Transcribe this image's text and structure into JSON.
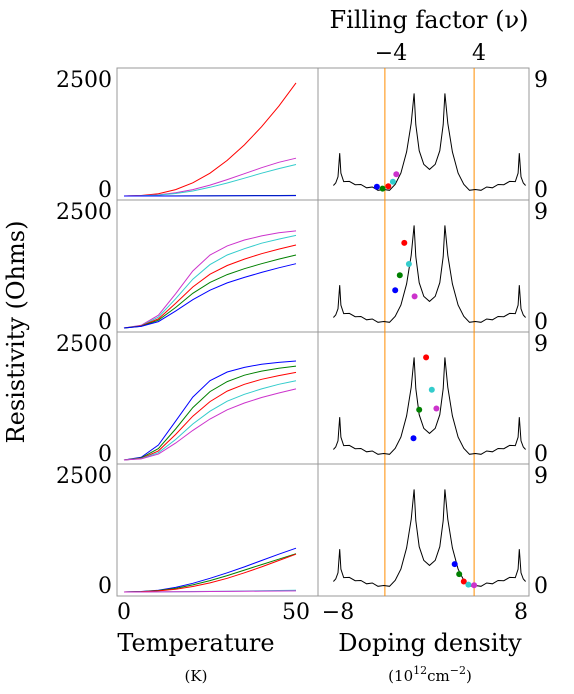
{
  "chart_data": [
    {
      "type": "line",
      "xlabel": "Temperature",
      "xunit": "(K)",
      "ylabel": "Resistivity (Ohms)",
      "xlim": [
        0,
        50
      ],
      "ylim": [
        0,
        2500
      ],
      "xticks": [
        "0",
        "50"
      ],
      "yticks": [
        "0",
        "2500"
      ],
      "x": [
        0,
        5,
        10,
        15,
        20,
        25,
        30,
        35,
        40,
        45,
        50
      ],
      "panels": [
        {
          "series": [
            {
              "color": "#ff0000",
              "values": [
                0,
                10,
                50,
                140,
                290,
                500,
                780,
                1120,
                1520,
                1970,
                2480
              ]
            },
            {
              "color": "#cc33cc",
              "values": [
                0,
                5,
                25,
                70,
                140,
                240,
                360,
                490,
                620,
                740,
                830
              ]
            },
            {
              "color": "#33cccc",
              "values": [
                0,
                4,
                20,
                55,
                110,
                190,
                285,
                390,
                500,
                600,
                690
              ]
            },
            {
              "color": "#008000",
              "values": [
                0,
                0,
                1,
                2,
                3,
                5,
                6,
                8,
                10,
                12,
                14
              ]
            },
            {
              "color": "#0000ff",
              "values": [
                0,
                0,
                1,
                1,
                2,
                3,
                4,
                5,
                6,
                7,
                8
              ]
            }
          ]
        },
        {
          "series": [
            {
              "color": "#cc33cc",
              "values": [
                0,
                60,
                280,
                750,
                1250,
                1600,
                1800,
                1930,
                2020,
                2090,
                2130
              ]
            },
            {
              "color": "#33cccc",
              "values": [
                0,
                50,
                240,
                640,
                1070,
                1390,
                1600,
                1740,
                1860,
                1950,
                2030
              ]
            },
            {
              "color": "#ff0000",
              "values": [
                0,
                45,
                200,
                540,
                900,
                1180,
                1370,
                1510,
                1630,
                1730,
                1820
              ]
            },
            {
              "color": "#008000",
              "values": [
                0,
                40,
                170,
                450,
                760,
                1000,
                1170,
                1300,
                1410,
                1510,
                1600
              ]
            },
            {
              "color": "#0000ff",
              "values": [
                0,
                35,
                140,
                370,
                620,
                830,
                990,
                1110,
                1220,
                1320,
                1410
              ]
            }
          ]
        },
        {
          "series": [
            {
              "color": "#0000ff",
              "values": [
                0,
                60,
                330,
                850,
                1380,
                1740,
                1930,
                2030,
                2100,
                2140,
                2170
              ]
            },
            {
              "color": "#008000",
              "values": [
                0,
                45,
                250,
                680,
                1150,
                1500,
                1720,
                1860,
                1950,
                2010,
                2060
              ]
            },
            {
              "color": "#ff0000",
              "values": [
                0,
                35,
                200,
                560,
                960,
                1280,
                1510,
                1660,
                1770,
                1850,
                1920
              ]
            },
            {
              "color": "#33cccc",
              "values": [
                0,
                30,
                160,
                450,
                790,
                1070,
                1290,
                1440,
                1560,
                1660,
                1740
              ]
            },
            {
              "color": "#cc33cc",
              "values": [
                0,
                25,
                130,
                370,
                650,
                900,
                1100,
                1250,
                1370,
                1470,
                1560
              ]
            }
          ]
        },
        {
          "series": [
            {
              "color": "#0000ff",
              "values": [
                0,
                10,
                40,
                100,
                190,
                300,
                420,
                550,
                690,
                830,
                960
              ]
            },
            {
              "color": "#008000",
              "values": [
                0,
                8,
                32,
                80,
                155,
                250,
                360,
                480,
                600,
                720,
                840
              ]
            },
            {
              "color": "#ff0000",
              "values": [
                0,
                6,
                25,
                60,
                120,
                200,
                300,
                420,
                550,
                690,
                830
              ]
            },
            {
              "color": "#33cccc",
              "values": [
                0,
                1,
                3,
                6,
                10,
                14,
                18,
                22,
                27,
                32,
                37
              ]
            },
            {
              "color": "#cc33cc",
              "values": [
                0,
                1,
                2,
                4,
                7,
                10,
                13,
                16,
                19,
                22,
                25
              ]
            }
          ]
        }
      ]
    },
    {
      "type": "line",
      "xlabel": "Doping density",
      "xunit_base": "(10",
      "xunit_exp": "12",
      "xunit_rest": "cm",
      "xunit_exp2": "−2",
      "xunit_close": ")",
      "top_xlabel": "Filling factor (ν)",
      "top_xticks": [
        "−4",
        "4"
      ],
      "top_xtick_positions": [
        -3.9,
        3.9
      ],
      "xlim": [
        -8.4,
        8.4
      ],
      "ylim": [
        0,
        9
      ],
      "xticks": [
        "−8",
        "8"
      ],
      "yticks": [
        "0",
        "9"
      ],
      "curve": {
        "color": "#000000",
        "points": [
          [
            -8.4,
            0.6
          ],
          [
            -8.2,
            0.8
          ],
          [
            -8.0,
            1.3
          ],
          [
            -7.85,
            3.2
          ],
          [
            -7.75,
            1.6
          ],
          [
            -7.5,
            1.0
          ],
          [
            -7.0,
            0.85
          ],
          [
            -6.5,
            0.75
          ],
          [
            -6.0,
            0.6
          ],
          [
            -5.5,
            0.5
          ],
          [
            -5.0,
            0.4
          ],
          [
            -4.5,
            0.3
          ],
          [
            -4.0,
            0.2
          ],
          [
            -3.5,
            0.3
          ],
          [
            -3.0,
            0.7
          ],
          [
            -2.5,
            1.6
          ],
          [
            -2.0,
            3.3
          ],
          [
            -1.6,
            5.6
          ],
          [
            -1.35,
            8.0
          ],
          [
            -1.2,
            5.5
          ],
          [
            -0.9,
            3.4
          ],
          [
            -0.5,
            2.3
          ],
          [
            0.0,
            1.9
          ],
          [
            0.5,
            2.3
          ],
          [
            0.9,
            3.4
          ],
          [
            1.2,
            5.5
          ],
          [
            1.35,
            8.0
          ],
          [
            1.6,
            5.6
          ],
          [
            2.0,
            3.3
          ],
          [
            2.5,
            1.6
          ],
          [
            3.0,
            0.7
          ],
          [
            3.5,
            0.3
          ],
          [
            4.0,
            0.2
          ],
          [
            4.5,
            0.3
          ],
          [
            5.0,
            0.4
          ],
          [
            5.5,
            0.5
          ],
          [
            6.0,
            0.6
          ],
          [
            6.5,
            0.75
          ],
          [
            7.0,
            0.85
          ],
          [
            7.5,
            1.0
          ],
          [
            7.75,
            1.6
          ],
          [
            7.85,
            3.2
          ],
          [
            8.0,
            1.3
          ],
          [
            8.2,
            0.8
          ],
          [
            8.4,
            0.6
          ]
        ]
      },
      "vlines": {
        "color": "#ff8c00",
        "x": [
          -3.9,
          3.9
        ]
      },
      "panels": [
        {
          "shift": 0,
          "markers": [
            {
              "x": -4.6,
              "y": 0.5,
              "color": "#0000ff"
            },
            {
              "x": -4.1,
              "y": 0.35,
              "color": "#008000"
            },
            {
              "x": -3.6,
              "y": 0.55,
              "color": "#ff0000"
            },
            {
              "x": -3.2,
              "y": 0.9,
              "color": "#33cccc"
            },
            {
              "x": -2.9,
              "y": 1.5,
              "color": "#cc33cc"
            }
          ]
        },
        {
          "shift": -2.3,
          "markers": [
            {
              "x": -3.0,
              "y": 2.8,
              "color": "#0000ff"
            },
            {
              "x": -2.6,
              "y": 4.0,
              "color": "#008000"
            },
            {
              "x": -2.2,
              "y": 6.6,
              "color": "#ff0000"
            },
            {
              "x": -1.8,
              "y": 4.9,
              "color": "#33cccc"
            },
            {
              "x": -1.3,
              "y": 2.3,
              "color": "#cc33cc"
            }
          ]
        },
        {
          "shift": -2.5,
          "markers": [
            {
              "x": -1.4,
              "y": 1.5,
              "color": "#0000ff"
            },
            {
              "x": -0.9,
              "y": 3.8,
              "color": "#008000"
            },
            {
              "x": -0.3,
              "y": 8.0,
              "color": "#ff0000"
            },
            {
              "x": 0.2,
              "y": 5.4,
              "color": "#33cccc"
            },
            {
              "x": 0.6,
              "y": 3.9,
              "color": "#cc33cc"
            }
          ]
        },
        {
          "shift": 0,
          "markers": [
            {
              "x": 2.2,
              "y": 2.0,
              "color": "#0000ff"
            },
            {
              "x": 2.6,
              "y": 1.2,
              "color": "#008000"
            },
            {
              "x": 3.0,
              "y": 0.6,
              "color": "#ff0000"
            },
            {
              "x": 3.4,
              "y": 0.35,
              "color": "#33cccc"
            },
            {
              "x": 3.9,
              "y": 0.3,
              "color": "#cc33cc"
            }
          ]
        }
      ]
    }
  ]
}
